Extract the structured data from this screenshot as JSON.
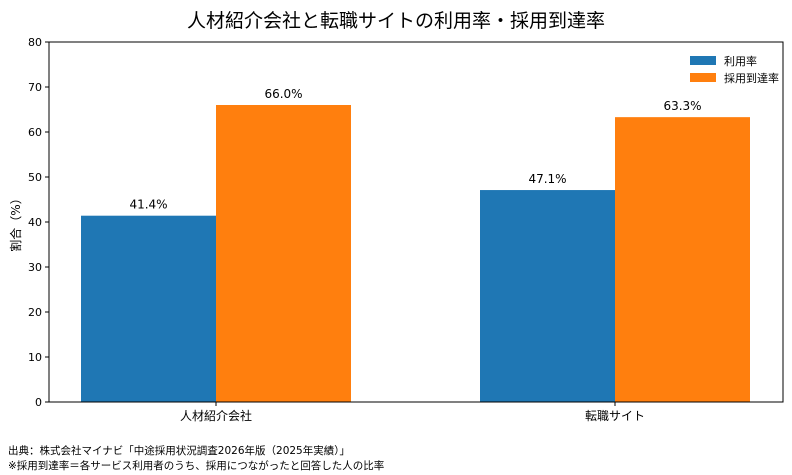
{
  "chart_data": {
    "type": "bar",
    "title": "人材紹介会社と転職サイトの利用率・採用到達率",
    "ylabel": "割合（%）",
    "xlabel": "",
    "ylim": [
      0,
      80
    ],
    "yticks": [
      0,
      10,
      20,
      30,
      40,
      50,
      60,
      70,
      80
    ],
    "categories": [
      "人材紹介会社",
      "転職サイト"
    ],
    "series": [
      {
        "name": "利用率",
        "values": [
          41.4,
          47.1
        ],
        "labels": [
          "41.4%",
          "47.1%"
        ],
        "color": "#1f77b4"
      },
      {
        "name": "採用到達率",
        "values": [
          66.0,
          63.3
        ],
        "labels": [
          "66.0%",
          "63.3%"
        ],
        "color": "#ff7f0e"
      }
    ],
    "legend_position": "top-right",
    "grid": false
  },
  "notes": {
    "source": "出典：株式会社マイナビ「中途採用状況調査2026年版（2025年実績）」",
    "footnote": "※採用到達率＝各サービス利用者のうち、採用につながったと回答した人の比率"
  }
}
